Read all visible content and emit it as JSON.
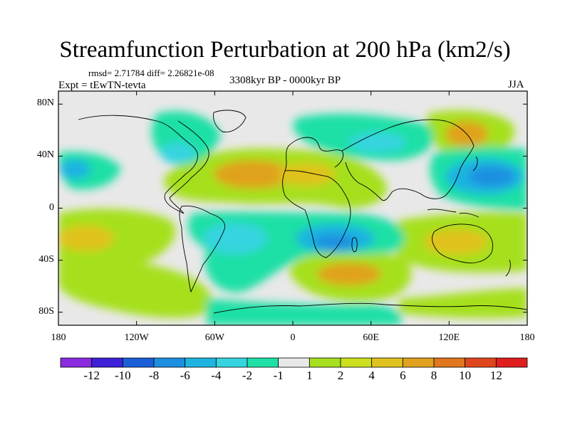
{
  "title": "Streamfunction Perturbation at 200 hPa (km2/s)",
  "stats_line": "rmsd= 2.71784 diff= 2.26821e-08",
  "experiment_label": "Expt = tEwTN-tevta",
  "period_label": "3308kyr BP - 0000kyr BP",
  "season_label": "JJA",
  "map": {
    "projection": "cylindrical-equidistant",
    "lon_range": [
      -180,
      180
    ],
    "lat_range": [
      -90,
      90
    ],
    "lat_ticks": [
      {
        "value": 80,
        "label": "80N"
      },
      {
        "value": 40,
        "label": "40N"
      },
      {
        "value": 0,
        "label": "0"
      },
      {
        "value": -40,
        "label": "40S"
      },
      {
        "value": -80,
        "label": "80S"
      }
    ],
    "lon_ticks": [
      {
        "value": -180,
        "label": "180"
      },
      {
        "value": -120,
        "label": "120W"
      },
      {
        "value": -60,
        "label": "60W"
      },
      {
        "value": 0,
        "label": "0"
      },
      {
        "value": 60,
        "label": "60E"
      },
      {
        "value": 120,
        "label": "120E"
      },
      {
        "value": 180,
        "label": "180"
      }
    ],
    "background_color": "#e8e8e8",
    "coastline_color": "#000000"
  },
  "colorbar": {
    "labels": [
      "-12",
      "-10",
      "-8",
      "-6",
      "-4",
      "-2",
      "-1",
      "1",
      "2",
      "4",
      "6",
      "8",
      "10",
      "12"
    ],
    "colors": [
      "#8a2be2",
      "#3d20d8",
      "#1a5fd8",
      "#1c8fe0",
      "#1fb4e0",
      "#35d4e0",
      "#1ee0a6",
      "#e8e8e8",
      "#a6e01e",
      "#cce01e",
      "#e0c21e",
      "#e0a21e",
      "#e0761e",
      "#e0461e",
      "#e01e1e"
    ]
  },
  "field_features": [
    {
      "type": "positive",
      "lon": -30,
      "lat": 28,
      "level": 6
    },
    {
      "type": "positive",
      "lon": 10,
      "lat": 30,
      "level": 4
    },
    {
      "type": "positive",
      "lon": 45,
      "lat": -48,
      "level": 6
    },
    {
      "type": "positive",
      "lon": -170,
      "lat": -22,
      "level": 4
    },
    {
      "type": "positive",
      "lon": -160,
      "lat": -60,
      "level": 2
    },
    {
      "type": "positive",
      "lon": 130,
      "lat": -25,
      "level": 4
    },
    {
      "type": "positive",
      "lon": 140,
      "lat": 58,
      "level": 6
    },
    {
      "type": "negative",
      "lon": 160,
      "lat": 27,
      "level": -8
    },
    {
      "type": "negative",
      "lon": -170,
      "lat": 31,
      "level": -4
    },
    {
      "type": "negative",
      "lon": 30,
      "lat": -25,
      "level": -6
    },
    {
      "type": "negative",
      "lon": -40,
      "lat": -20,
      "level": -2
    },
    {
      "type": "negative",
      "lon": -80,
      "lat": 40,
      "level": -2
    },
    {
      "type": "negative",
      "lon": 80,
      "lat": 45,
      "level": -2
    },
    {
      "type": "negative",
      "lon": 20,
      "lat": -75,
      "level": -2
    }
  ]
}
